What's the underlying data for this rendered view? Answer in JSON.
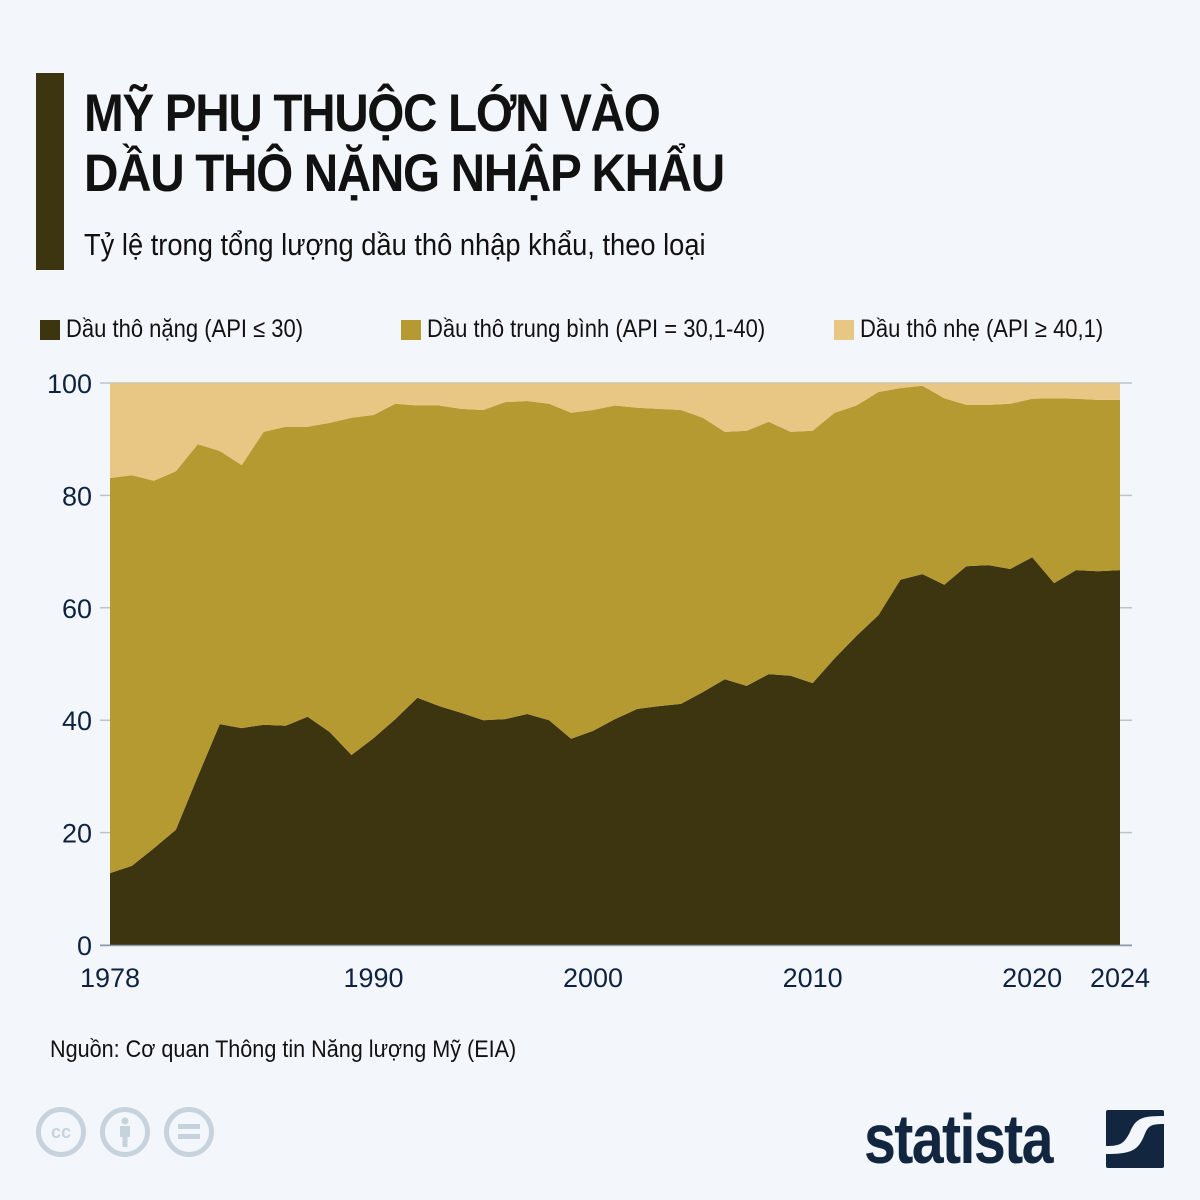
{
  "header": {
    "title_line1": "MỸ PHỤ THUỘC LỚN VÀO",
    "title_line2": "DẦU THÔ NẶNG NHẬP KHẨU",
    "subtitle": "Tỷ lệ trong tổng lượng dầu thô nhập khẩu, theo loại"
  },
  "legend": [
    {
      "label": "Dầu thô nặng (API ≤ 30)",
      "color": "#3d3410"
    },
    {
      "label": "Dầu thô trung bình (API = 30,1-40)",
      "color": "#b59a31"
    },
    {
      "label": "Dầu thô nhẹ (API ≥ 40,1)",
      "color": "#e8c784"
    }
  ],
  "footer": {
    "source": "Nguồn: Cơ quan Thông tin Năng lượng Mỹ (EIA)",
    "brand": "statista",
    "license_icons": [
      "cc-icon",
      "attribution-icon",
      "no-derivatives-icon"
    ]
  },
  "chart_data": {
    "type": "area",
    "stacked": true,
    "title": "MỸ PHỤ THUỘC LỚN VÀO DẦU THÔ NẶNG NHẬP KHẨU",
    "subtitle": "Tỷ lệ trong tổng lượng dầu thô nhập khẩu, theo loại",
    "xlabel": "",
    "ylabel": "",
    "ylim": [
      0,
      100
    ],
    "yticks": [
      0,
      20,
      40,
      60,
      80,
      100
    ],
    "xticks": [
      "1978",
      "1990",
      "2000",
      "2010",
      "2020",
      "2024"
    ],
    "grid": true,
    "legend_position": "top",
    "x": [
      1978,
      1979,
      1980,
      1981,
      1982,
      1983,
      1984,
      1985,
      1986,
      1987,
      1988,
      1989,
      1990,
      1991,
      1992,
      1993,
      1994,
      1995,
      1996,
      1997,
      1998,
      1999,
      2000,
      2001,
      2002,
      2003,
      2004,
      2005,
      2006,
      2007,
      2008,
      2009,
      2010,
      2011,
      2012,
      2013,
      2014,
      2015,
      2016,
      2017,
      2018,
      2019,
      2020,
      2021,
      2022,
      2023,
      2024
    ],
    "series": [
      {
        "name": "Dầu thô nặng (API ≤ 30)",
        "color": "#3d3410",
        "values": [
          12.8,
          14.1,
          17.2,
          20.5,
          30.0,
          39.3,
          38.6,
          39.2,
          39.0,
          40.6,
          37.9,
          33.8,
          36.8,
          40.2,
          44.0,
          42.5,
          41.3,
          40.0,
          40.2,
          41.1,
          40.0,
          36.7,
          38.1,
          40.2,
          42.0,
          42.5,
          42.9,
          45.0,
          47.3,
          46.1,
          48.2,
          47.9,
          46.6,
          51.0,
          55.0,
          58.7,
          65.0,
          66.0,
          64.1,
          67.4,
          67.6,
          66.9,
          69.0,
          64.4,
          66.7,
          66.5,
          66.7
        ]
      },
      {
        "name": "Dầu thô trung bình (API = 30,1-40)",
        "color": "#b59a31",
        "values": [
          70.3,
          69.5,
          65.4,
          63.8,
          59.1,
          48.6,
          46.8,
          52.1,
          53.2,
          51.6,
          55.0,
          60.0,
          57.5,
          56.1,
          52.0,
          53.5,
          54.1,
          55.2,
          56.4,
          55.7,
          56.3,
          58.0,
          57.1,
          55.8,
          53.6,
          52.9,
          52.3,
          48.8,
          44.0,
          45.4,
          44.9,
          43.4,
          44.9,
          43.7,
          41.0,
          39.7,
          34.1,
          33.5,
          33.2,
          28.7,
          28.5,
          29.4,
          28.2,
          32.9,
          30.5,
          30.5,
          30.3
        ]
      },
      {
        "name": "Dầu thô nhẹ (API ≥ 40,1)",
        "color": "#e8c784",
        "values": [
          16.9,
          16.4,
          17.4,
          15.7,
          10.9,
          12.1,
          14.6,
          8.7,
          7.8,
          7.8,
          7.1,
          6.2,
          5.7,
          3.7,
          4.0,
          4.0,
          4.6,
          4.8,
          3.4,
          3.2,
          3.7,
          5.3,
          4.8,
          4.0,
          4.4,
          4.6,
          4.8,
          6.2,
          8.7,
          8.5,
          6.9,
          8.7,
          8.5,
          5.3,
          4.0,
          1.6,
          0.9,
          0.5,
          2.7,
          3.9,
          3.9,
          3.7,
          2.8,
          2.7,
          2.8,
          3.0,
          3.0
        ]
      }
    ]
  }
}
